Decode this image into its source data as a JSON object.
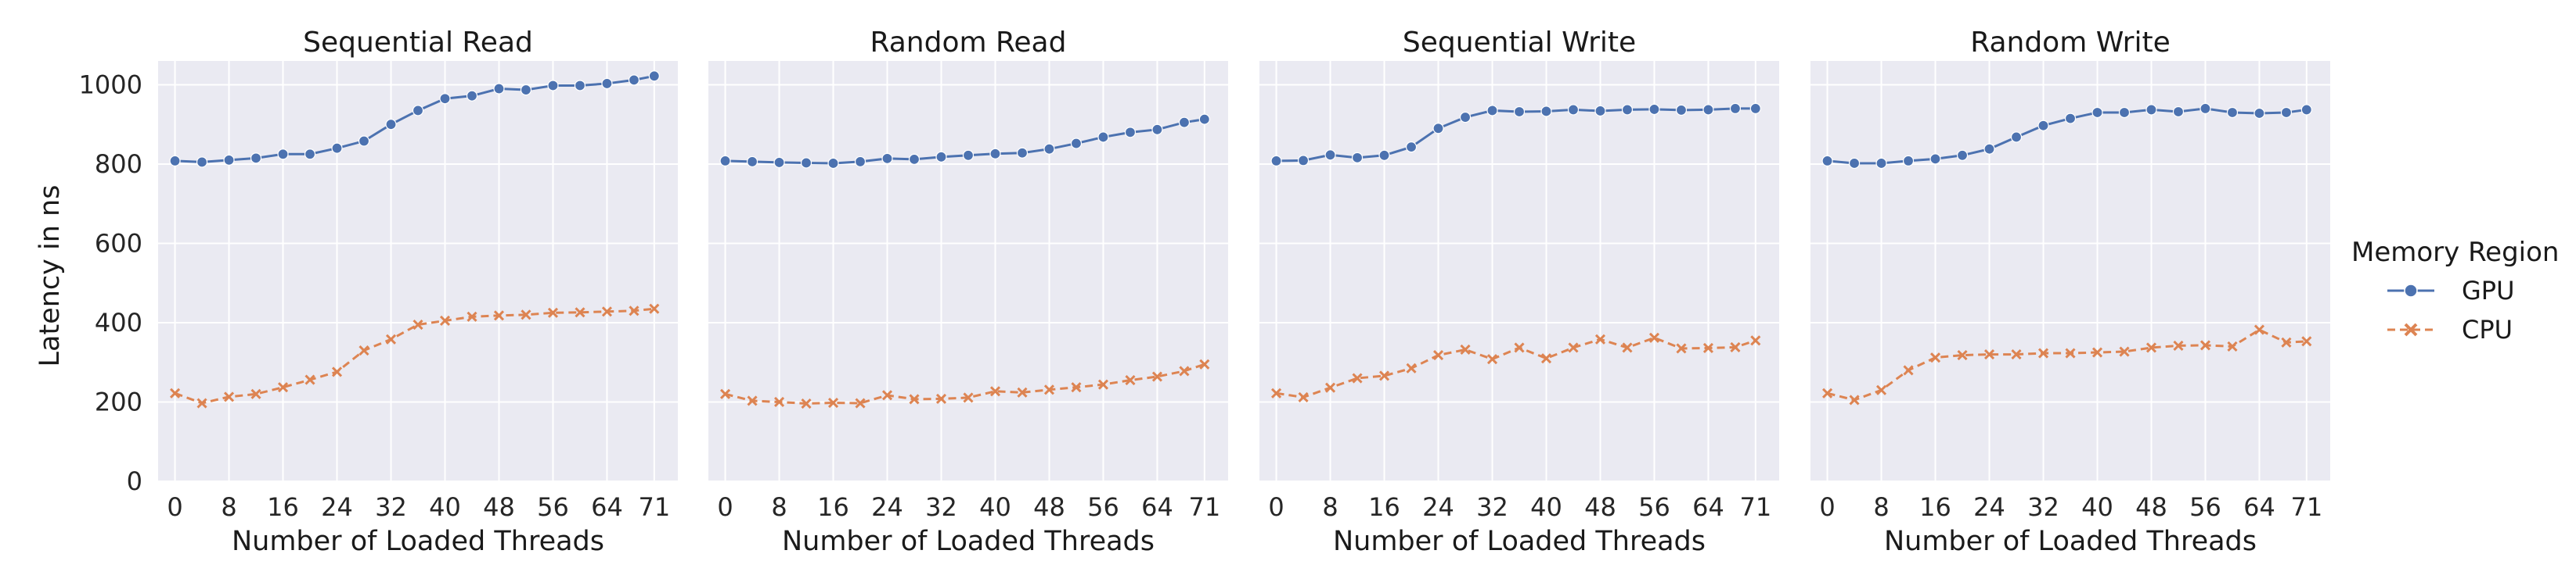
{
  "figure": {
    "ylabel": "Latency in ns",
    "xlabel": "Number of Loaded Threads",
    "legend_title": "Memory Region",
    "legend_placement": "right",
    "grid": true,
    "colors": {
      "GPU": "#4c72b0",
      "CPU": "#dd8452",
      "panel_bg": "#eaeaf2",
      "grid": "#ffffff"
    }
  },
  "chart_data": [
    {
      "type": "line",
      "title": "Sequential Read",
      "xlabel": "Number of Loaded Threads",
      "ylabel": "Latency in ns",
      "xticks": [
        0,
        8,
        16,
        24,
        32,
        40,
        48,
        56,
        64,
        71
      ],
      "yticks": [
        0,
        200,
        400,
        600,
        800,
        1000
      ],
      "xlim": [
        -2.5,
        74.5
      ],
      "ylim": [
        0,
        1060
      ],
      "x": [
        0,
        4,
        8,
        12,
        16,
        20,
        24,
        28,
        32,
        36,
        40,
        44,
        48,
        52,
        56,
        60,
        64,
        68,
        71
      ],
      "series": [
        {
          "name": "GPU",
          "marker": "circle",
          "linestyle": "solid",
          "values": [
            808,
            805,
            810,
            815,
            825,
            825,
            840,
            858,
            900,
            935,
            965,
            972,
            990,
            987,
            998,
            998,
            1003,
            1012,
            1022
          ]
        },
        {
          "name": "CPU",
          "marker": "x",
          "linestyle": "dashed",
          "values": [
            222,
            197,
            213,
            220,
            237,
            256,
            276,
            330,
            358,
            395,
            405,
            415,
            418,
            420,
            425,
            426,
            428,
            430,
            435
          ]
        }
      ]
    },
    {
      "type": "line",
      "title": "Random Read",
      "xlabel": "Number of Loaded Threads",
      "ylabel": "Latency in ns",
      "xticks": [
        0,
        8,
        16,
        24,
        32,
        40,
        48,
        56,
        64,
        71
      ],
      "yticks": [
        0,
        200,
        400,
        600,
        800,
        1000
      ],
      "xlim": [
        -2.5,
        74.5
      ],
      "ylim": [
        0,
        1060
      ],
      "x": [
        0,
        4,
        8,
        12,
        16,
        20,
        24,
        28,
        32,
        36,
        40,
        44,
        48,
        52,
        56,
        60,
        64,
        68,
        71
      ],
      "series": [
        {
          "name": "GPU",
          "marker": "circle",
          "linestyle": "solid",
          "values": [
            808,
            806,
            804,
            803,
            802,
            806,
            814,
            812,
            818,
            822,
            826,
            828,
            838,
            852,
            868,
            880,
            887,
            905,
            913
          ]
        },
        {
          "name": "CPU",
          "marker": "x",
          "linestyle": "dashed",
          "values": [
            220,
            203,
            200,
            196,
            198,
            197,
            217,
            207,
            208,
            211,
            227,
            224,
            231,
            237,
            244,
            255,
            264,
            278,
            295
          ]
        }
      ]
    },
    {
      "type": "line",
      "title": "Sequential Write",
      "xlabel": "Number of Loaded Threads",
      "ylabel": "Latency in ns",
      "xticks": [
        0,
        8,
        16,
        24,
        32,
        40,
        48,
        56,
        64,
        71
      ],
      "yticks": [
        0,
        200,
        400,
        600,
        800,
        1000
      ],
      "xlim": [
        -2.5,
        74.5
      ],
      "ylim": [
        0,
        1060
      ],
      "x": [
        0,
        4,
        8,
        12,
        16,
        20,
        24,
        28,
        32,
        36,
        40,
        44,
        48,
        52,
        56,
        60,
        64,
        68,
        71
      ],
      "series": [
        {
          "name": "GPU",
          "marker": "circle",
          "linestyle": "solid",
          "values": [
            808,
            809,
            823,
            816,
            822,
            843,
            890,
            918,
            935,
            932,
            933,
            937,
            934,
            937,
            938,
            936,
            937,
            940,
            940
          ]
        },
        {
          "name": "CPU",
          "marker": "x",
          "linestyle": "dashed",
          "values": [
            222,
            212,
            236,
            260,
            266,
            285,
            318,
            332,
            308,
            337,
            310,
            337,
            358,
            337,
            362,
            335,
            336,
            338,
            355
          ]
        }
      ]
    },
    {
      "type": "line",
      "title": "Random Write",
      "xlabel": "Number of Loaded Threads",
      "ylabel": "Latency in ns",
      "xticks": [
        0,
        8,
        16,
        24,
        32,
        40,
        48,
        56,
        64,
        71
      ],
      "yticks": [
        0,
        200,
        400,
        600,
        800,
        1000
      ],
      "xlim": [
        -2.5,
        74.5
      ],
      "ylim": [
        0,
        1060
      ],
      "x": [
        0,
        4,
        8,
        12,
        16,
        20,
        24,
        28,
        32,
        36,
        40,
        44,
        48,
        52,
        56,
        60,
        64,
        68,
        71
      ],
      "series": [
        {
          "name": "GPU",
          "marker": "circle",
          "linestyle": "solid",
          "values": [
            808,
            802,
            802,
            808,
            813,
            822,
            838,
            868,
            897,
            915,
            930,
            930,
            937,
            932,
            940,
            930,
            928,
            930,
            937
          ]
        },
        {
          "name": "CPU",
          "marker": "x",
          "linestyle": "dashed",
          "values": [
            222,
            205,
            230,
            280,
            312,
            318,
            320,
            320,
            323,
            323,
            325,
            327,
            337,
            342,
            343,
            340,
            382,
            350,
            353
          ]
        }
      ]
    }
  ]
}
